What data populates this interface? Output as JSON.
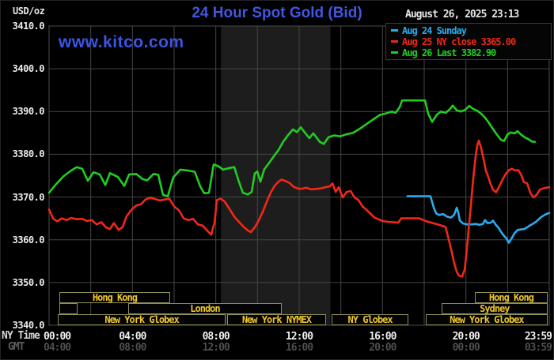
{
  "header": {
    "units_label": "USD/oz",
    "title": "24 Hour Spot Gold (Bid)",
    "datetime": "August 26, 2025 23:13",
    "watermark": "www.kitco.com"
  },
  "legend": {
    "items": [
      {
        "label": "Aug 24 Sunday",
        "color": "#2aabee"
      },
      {
        "label": "Aug 25 NY close 3365.00",
        "color": "#f02818"
      },
      {
        "label": "Aug 26 Last 3382.90",
        "color": "#22cc22"
      }
    ]
  },
  "chart_data": {
    "type": "line",
    "title": "24 Hour Spot Gold (Bid)",
    "ylabel": "USD/oz",
    "ylim": [
      3340,
      3410
    ],
    "y_tick_step": 10,
    "y_ticks": [
      "3410.0",
      "3400.0",
      "3390.0",
      "3380.0",
      "3370.0",
      "3360.0",
      "3350.0",
      "3340.0"
    ],
    "x_axis": {
      "ny_label": "NY Time",
      "gmt_label": "GMT",
      "ticks": [
        {
          "h": 0,
          "ny": "00:00",
          "gmt": "04:00"
        },
        {
          "h": 4,
          "ny": "04:00",
          "gmt": "08:00"
        },
        {
          "h": 8,
          "ny": "08:00",
          "gmt": "12:00"
        },
        {
          "h": 12,
          "ny": "12:00",
          "gmt": "16:00"
        },
        {
          "h": 16,
          "ny": "16:00",
          "gmt": "20:00"
        },
        {
          "h": 20,
          "ny": "20:00",
          "gmt": "00:00"
        },
        {
          "h": 23.983,
          "ny": "23:59",
          "gmt": "03:59"
        }
      ],
      "gridline_every_hours": 2
    },
    "nymex_band_hours": [
      8.25,
      13.5
    ],
    "grid_color": "#454545",
    "band_color": "#1d1d1d",
    "series": [
      {
        "name": "Aug 24 Sunday",
        "color": "#2aabee",
        "points": [
          [
            17.2,
            3370.2
          ],
          [
            18.3,
            3370.2
          ],
          [
            18.46,
            3367.5
          ],
          [
            18.57,
            3366.2
          ],
          [
            18.72,
            3365.8
          ],
          [
            18.91,
            3366.0
          ],
          [
            19.1,
            3365.4
          ],
          [
            19.29,
            3365.2
          ],
          [
            19.44,
            3365.9
          ],
          [
            19.56,
            3367.5
          ],
          [
            19.63,
            3366.5
          ],
          [
            19.71,
            3364.5
          ],
          [
            19.86,
            3363.8
          ],
          [
            20.05,
            3363.6
          ],
          [
            20.28,
            3363.6
          ],
          [
            20.47,
            3363.7
          ],
          [
            20.66,
            3363.5
          ],
          [
            20.81,
            3363.7
          ],
          [
            20.92,
            3364.6
          ],
          [
            21.03,
            3363.9
          ],
          [
            21.19,
            3364.0
          ],
          [
            21.3,
            3364.5
          ],
          [
            21.45,
            3363.4
          ],
          [
            21.57,
            3362.8
          ],
          [
            21.68,
            3361.9
          ],
          [
            21.83,
            3360.9
          ],
          [
            21.95,
            3360.3
          ],
          [
            22.06,
            3359.3
          ],
          [
            22.18,
            3360.2
          ],
          [
            22.33,
            3361.5
          ],
          [
            22.48,
            3362.3
          ],
          [
            22.63,
            3362.4
          ],
          [
            22.78,
            3362.5
          ],
          [
            22.94,
            3362.9
          ],
          [
            23.09,
            3363.4
          ],
          [
            23.24,
            3363.8
          ],
          [
            23.39,
            3364.3
          ],
          [
            23.58,
            3365.2
          ],
          [
            23.77,
            3365.8
          ],
          [
            24,
            3366.3
          ]
        ]
      },
      {
        "name": "Aug 25 NY close 3365.00",
        "color": "#f02818",
        "close": 3365.0,
        "points": [
          [
            0,
            3367.1
          ],
          [
            0.19,
            3365.0
          ],
          [
            0.38,
            3364.3
          ],
          [
            0.61,
            3365.0
          ],
          [
            0.84,
            3364.6
          ],
          [
            1.06,
            3365.1
          ],
          [
            1.33,
            3364.8
          ],
          [
            1.59,
            3364.9
          ],
          [
            1.82,
            3364.4
          ],
          [
            2.05,
            3364.6
          ],
          [
            2.28,
            3363.6
          ],
          [
            2.51,
            3364.1
          ],
          [
            2.73,
            3362.9
          ],
          [
            2.92,
            3362.5
          ],
          [
            3.11,
            3363.9
          ],
          [
            3.34,
            3362.3
          ],
          [
            3.53,
            3363.0
          ],
          [
            3.72,
            3365.5
          ],
          [
            3.95,
            3367.0
          ],
          [
            4.18,
            3368.0
          ],
          [
            4.4,
            3368.3
          ],
          [
            4.63,
            3369.4
          ],
          [
            4.86,
            3369.9
          ],
          [
            5.09,
            3369.5
          ],
          [
            5.32,
            3369.2
          ],
          [
            5.54,
            3369.4
          ],
          [
            5.77,
            3369.6
          ],
          [
            6.0,
            3367.8
          ],
          [
            6.23,
            3366.9
          ],
          [
            6.46,
            3365.0
          ],
          [
            6.68,
            3364.6
          ],
          [
            6.91,
            3364.9
          ],
          [
            7.14,
            3363.6
          ],
          [
            7.37,
            3363.3
          ],
          [
            7.59,
            3362.1
          ],
          [
            7.78,
            3361.2
          ],
          [
            7.94,
            3364.0
          ],
          [
            8.05,
            3369.3
          ],
          [
            8.24,
            3369.6
          ],
          [
            8.43,
            3368.9
          ],
          [
            8.66,
            3367.2
          ],
          [
            8.89,
            3365.4
          ],
          [
            9.11,
            3364.2
          ],
          [
            9.34,
            3363.0
          ],
          [
            9.53,
            3362.2
          ],
          [
            9.68,
            3361.8
          ],
          [
            9.87,
            3362.9
          ],
          [
            10.06,
            3364.5
          ],
          [
            10.25,
            3366.5
          ],
          [
            10.44,
            3368.8
          ],
          [
            10.63,
            3371.0
          ],
          [
            10.82,
            3372.6
          ],
          [
            11.01,
            3373.6
          ],
          [
            11.16,
            3374.1
          ],
          [
            11.35,
            3373.7
          ],
          [
            11.54,
            3373.3
          ],
          [
            11.73,
            3372.4
          ],
          [
            11.92,
            3372.0
          ],
          [
            12.11,
            3371.9
          ],
          [
            12.34,
            3372.2
          ],
          [
            12.57,
            3371.8
          ],
          [
            12.8,
            3371.9
          ],
          [
            13.03,
            3372.0
          ],
          [
            13.25,
            3372.3
          ],
          [
            13.48,
            3372.5
          ],
          [
            13.6,
            3373.2
          ],
          [
            13.75,
            3371.2
          ],
          [
            13.9,
            3372.3
          ],
          [
            14.09,
            3369.9
          ],
          [
            14.28,
            3371.2
          ],
          [
            14.47,
            3371.4
          ],
          [
            14.66,
            3369.9
          ],
          [
            14.85,
            3369.3
          ],
          [
            15.04,
            3367.8
          ],
          [
            15.23,
            3367.0
          ],
          [
            15.42,
            3366.1
          ],
          [
            15.61,
            3365.2
          ],
          [
            15.8,
            3364.8
          ],
          [
            15.99,
            3364.4
          ],
          [
            16.25,
            3364.2
          ],
          [
            16.52,
            3364.1
          ],
          [
            16.75,
            3364.0
          ],
          [
            16.9,
            3365.0
          ],
          [
            17.77,
            3365.0
          ],
          [
            17.96,
            3364.6
          ],
          [
            18.19,
            3364.2
          ],
          [
            18.42,
            3363.9
          ],
          [
            18.64,
            3363.6
          ],
          [
            18.83,
            3363.3
          ],
          [
            19.02,
            3363.0
          ],
          [
            19.18,
            3360.0
          ],
          [
            19.33,
            3357.0
          ],
          [
            19.44,
            3354.5
          ],
          [
            19.56,
            3352.5
          ],
          [
            19.67,
            3351.6
          ],
          [
            19.82,
            3351.4
          ],
          [
            19.94,
            3353.0
          ],
          [
            20.01,
            3356.0
          ],
          [
            20.09,
            3360.0
          ],
          [
            20.16,
            3364.0
          ],
          [
            20.24,
            3368.0
          ],
          [
            20.31,
            3372.0
          ],
          [
            20.39,
            3376.0
          ],
          [
            20.47,
            3379.5
          ],
          [
            20.54,
            3382.0
          ],
          [
            20.62,
            3383.2
          ],
          [
            20.73,
            3381.5
          ],
          [
            20.85,
            3378.8
          ],
          [
            20.96,
            3376.2
          ],
          [
            21.07,
            3374.8
          ],
          [
            21.19,
            3373.0
          ],
          [
            21.3,
            3371.7
          ],
          [
            21.45,
            3371.1
          ],
          [
            21.6,
            3372.5
          ],
          [
            21.76,
            3374.1
          ],
          [
            21.91,
            3375.4
          ],
          [
            22.06,
            3376.3
          ],
          [
            22.21,
            3376.6
          ],
          [
            22.37,
            3376.2
          ],
          [
            22.52,
            3376.3
          ],
          [
            22.67,
            3375.0
          ],
          [
            22.78,
            3373.5
          ],
          [
            22.94,
            3373.2
          ],
          [
            23.09,
            3371.0
          ],
          [
            23.24,
            3369.9
          ],
          [
            23.39,
            3370.5
          ],
          [
            23.54,
            3371.7
          ],
          [
            23.7,
            3372.0
          ],
          [
            23.85,
            3372.2
          ],
          [
            24,
            3372.3
          ]
        ]
      },
      {
        "name": "Aug 26 Last 3382.90",
        "color": "#22cc22",
        "last": 3382.9,
        "points": [
          [
            0,
            3371.0
          ],
          [
            0.3,
            3372.8
          ],
          [
            0.68,
            3374.8
          ],
          [
            1.06,
            3376.2
          ],
          [
            1.33,
            3377.0
          ],
          [
            1.59,
            3376.6
          ],
          [
            1.86,
            3373.8
          ],
          [
            2.13,
            3375.8
          ],
          [
            2.43,
            3375.3
          ],
          [
            2.7,
            3372.8
          ],
          [
            2.92,
            3375.6
          ],
          [
            3.3,
            3374.7
          ],
          [
            3.61,
            3372.6
          ],
          [
            3.84,
            3375.3
          ],
          [
            4.18,
            3375.4
          ],
          [
            4.48,
            3374.2
          ],
          [
            4.71,
            3373.9
          ],
          [
            5.01,
            3375.4
          ],
          [
            5.24,
            3375.2
          ],
          [
            5.47,
            3370.5
          ],
          [
            5.7,
            3370.2
          ],
          [
            5.96,
            3374.6
          ],
          [
            6.3,
            3376.4
          ],
          [
            6.68,
            3376.2
          ],
          [
            6.99,
            3375.9
          ],
          [
            7.25,
            3372.5
          ],
          [
            7.44,
            3370.9
          ],
          [
            7.67,
            3371.0
          ],
          [
            7.9,
            3377.6
          ],
          [
            8.13,
            3377.2
          ],
          [
            8.35,
            3376.4
          ],
          [
            8.66,
            3376.8
          ],
          [
            8.89,
            3377.0
          ],
          [
            9.08,
            3374.0
          ],
          [
            9.3,
            3371.0
          ],
          [
            9.53,
            3370.6
          ],
          [
            9.72,
            3371.2
          ],
          [
            9.87,
            3375.5
          ],
          [
            9.99,
            3376.0
          ],
          [
            10.14,
            3373.6
          ],
          [
            10.33,
            3376.5
          ],
          [
            10.56,
            3378.0
          ],
          [
            10.78,
            3379.5
          ],
          [
            11.01,
            3381.0
          ],
          [
            11.24,
            3383.0
          ],
          [
            11.47,
            3384.5
          ],
          [
            11.7,
            3385.8
          ],
          [
            11.89,
            3385.2
          ],
          [
            12.08,
            3386.3
          ],
          [
            12.3,
            3384.9
          ],
          [
            12.49,
            3383.8
          ],
          [
            12.68,
            3384.9
          ],
          [
            12.99,
            3382.9
          ],
          [
            13.18,
            3382.4
          ],
          [
            13.41,
            3384.0
          ],
          [
            13.67,
            3384.4
          ],
          [
            13.97,
            3384.2
          ],
          [
            14.28,
            3384.7
          ],
          [
            14.58,
            3385.0
          ],
          [
            14.92,
            3386.0
          ],
          [
            15.27,
            3387.2
          ],
          [
            15.57,
            3388.2
          ],
          [
            15.87,
            3389.2
          ],
          [
            16.18,
            3389.6
          ],
          [
            16.44,
            3390.0
          ],
          [
            16.63,
            3389.7
          ],
          [
            16.82,
            3391.0
          ],
          [
            16.94,
            3392.6
          ],
          [
            18.04,
            3392.6
          ],
          [
            18.19,
            3389.5
          ],
          [
            18.38,
            3387.6
          ],
          [
            18.61,
            3389.3
          ],
          [
            18.8,
            3390.0
          ],
          [
            19.03,
            3389.7
          ],
          [
            19.22,
            3390.5
          ],
          [
            19.37,
            3391.4
          ],
          [
            19.56,
            3390.3
          ],
          [
            19.75,
            3390.0
          ],
          [
            19.97,
            3390.4
          ],
          [
            20.16,
            3391.3
          ],
          [
            20.35,
            3390.6
          ],
          [
            20.54,
            3390.2
          ],
          [
            20.73,
            3389.5
          ],
          [
            20.92,
            3388.6
          ],
          [
            21.11,
            3387.3
          ],
          [
            21.3,
            3385.9
          ],
          [
            21.49,
            3384.6
          ],
          [
            21.68,
            3383.4
          ],
          [
            21.83,
            3383.1
          ],
          [
            21.99,
            3384.6
          ],
          [
            22.14,
            3385.1
          ],
          [
            22.33,
            3384.9
          ],
          [
            22.48,
            3385.4
          ],
          [
            22.67,
            3384.5
          ],
          [
            22.82,
            3384.0
          ],
          [
            23.01,
            3383.5
          ],
          [
            23.16,
            3383.0
          ],
          [
            23.31,
            3382.9
          ]
        ]
      }
    ],
    "sessions": [
      {
        "row": 0,
        "label": "Hong Kong",
        "h1": 0.49,
        "h2": 5.81
      },
      {
        "row": 0,
        "label": "Hong Kong",
        "h1": 20.43,
        "h2": 23.92
      },
      {
        "row": 1,
        "label": "",
        "h1": 0.49,
        "h2": 1.37
      },
      {
        "row": 1,
        "label": "London",
        "h1": 3.8,
        "h2": 11.16
      },
      {
        "row": 1,
        "label": "Sydney",
        "h1": 18.83,
        "h2": 23.92
      },
      {
        "row": 2,
        "label": "New York Globex",
        "h1": 0.42,
        "h2": 8.47
      },
      {
        "row": 2,
        "label": "New York NYMEX",
        "h1": 8.54,
        "h2": 13.29
      },
      {
        "row": 2,
        "label": "NY Globex",
        "h1": 13.56,
        "h2": 17.24
      },
      {
        "row": 2,
        "label": "New York Globex",
        "h1": 18.07,
        "h2": 23.92
      }
    ]
  }
}
